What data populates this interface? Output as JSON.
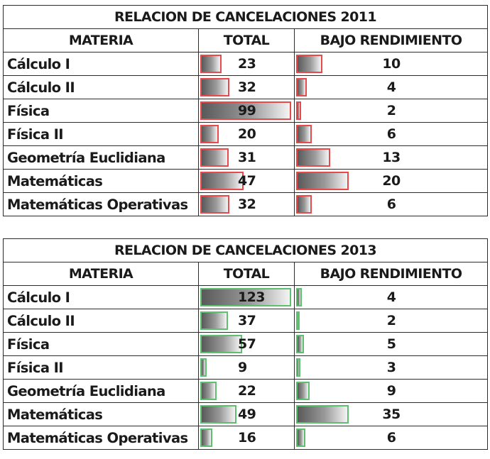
{
  "tables": [
    {
      "id": "t2011",
      "title": "RELACION DE CANCELACIONES 2011",
      "headers": [
        "MATERIA",
        "TOTAL",
        "BAJO RENDIMIENTO"
      ],
      "bar_color": "#e8494a",
      "total_max": 99,
      "bajo_max": 20,
      "rows": [
        {
          "materia": "Cálculo I",
          "total": 23,
          "bajo": 10
        },
        {
          "materia": "Cálculo II",
          "total": 32,
          "bajo": 4
        },
        {
          "materia": "Física",
          "total": 99,
          "bajo": 2
        },
        {
          "materia": "Física II",
          "total": 20,
          "bajo": 6
        },
        {
          "materia": "Geometría Euclidiana",
          "total": 31,
          "bajo": 13
        },
        {
          "materia": "Matemáticas",
          "total": 47,
          "bajo": 20
        },
        {
          "materia": "Matemáticas Operativas",
          "total": 32,
          "bajo": 6
        }
      ]
    },
    {
      "id": "t2013",
      "title": "RELACION DE CANCELACIONES 2013",
      "headers": [
        "MATERIA",
        "TOTAL",
        "BAJO RENDIMIENTO"
      ],
      "bar_color": "#5fbf71",
      "total_max": 123,
      "bajo_max": 35,
      "rows": [
        {
          "materia": "Cálculo I",
          "total": 123,
          "bajo": 4
        },
        {
          "materia": "Cálculo II",
          "total": 37,
          "bajo": 2
        },
        {
          "materia": "Física",
          "total": 57,
          "bajo": 5
        },
        {
          "materia": "Física II",
          "total": 9,
          "bajo": 3
        },
        {
          "materia": "Geometría Euclidiana",
          "total": 22,
          "bajo": 9
        },
        {
          "materia": "Matemáticas",
          "total": 49,
          "bajo": 35
        },
        {
          "materia": "Matemáticas Operativas",
          "total": 16,
          "bajo": 6
        }
      ]
    }
  ]
}
